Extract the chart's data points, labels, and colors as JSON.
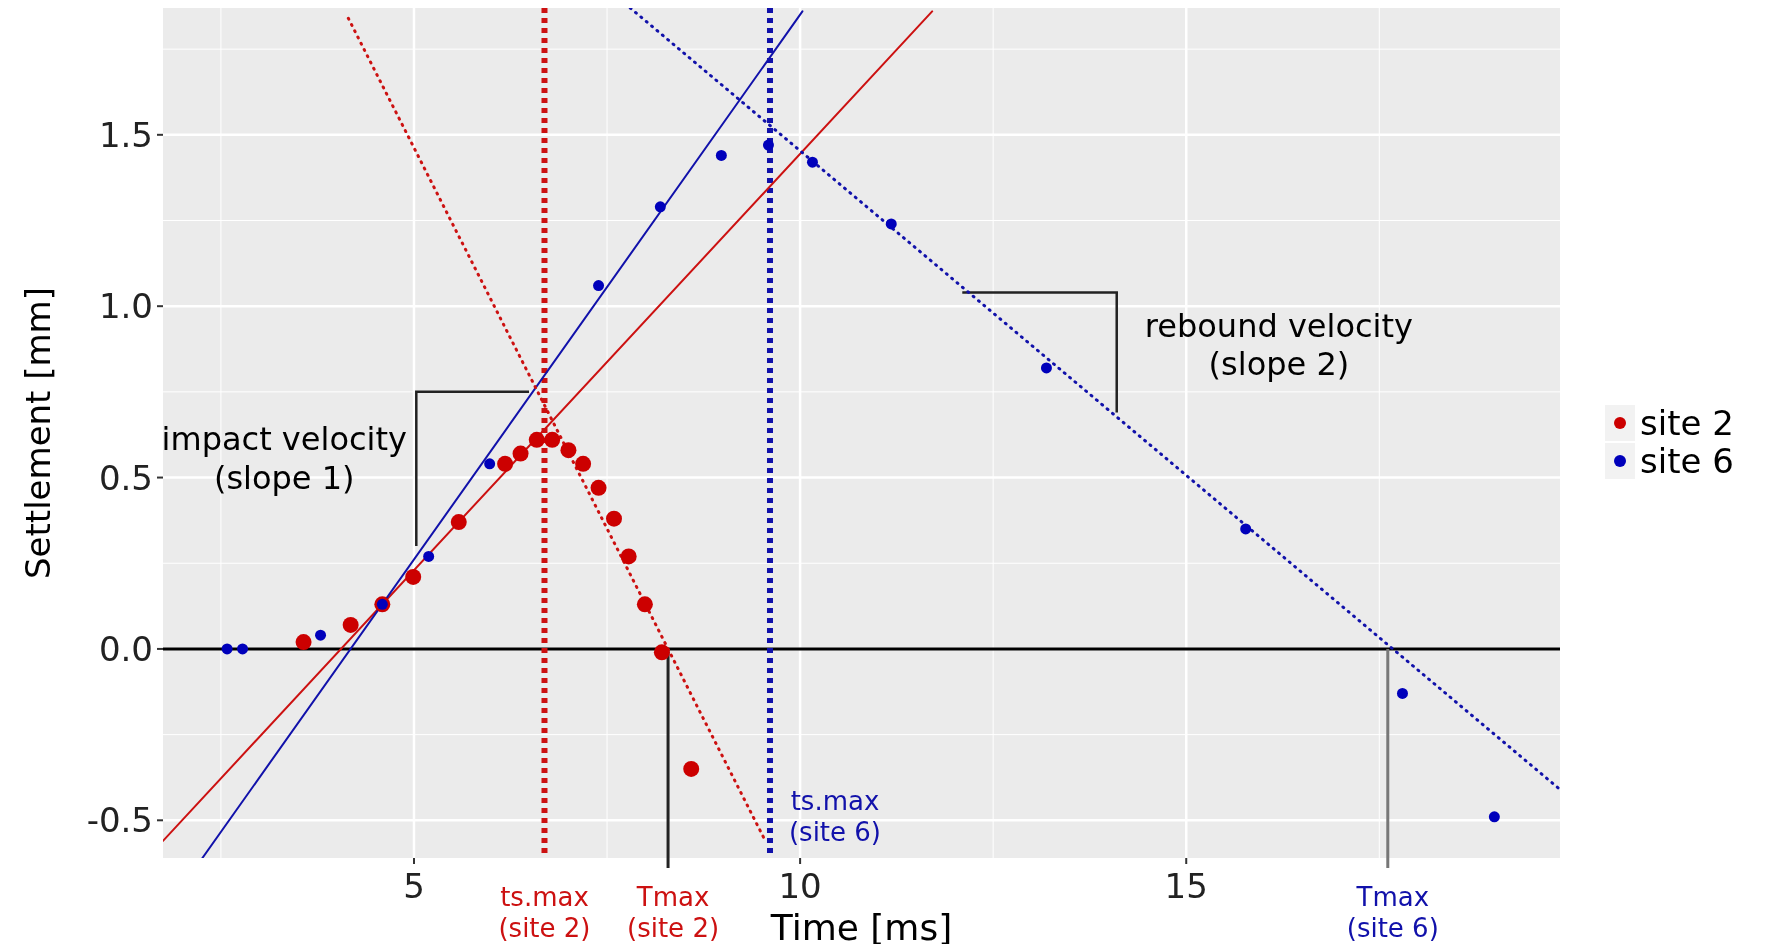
{
  "chart_data": {
    "type": "scatter",
    "xlabel": "Time [ms]",
    "ylabel": "Settlement [mm]",
    "xlim": [
      1.75,
      19.84
    ],
    "ylim": [
      -0.61,
      1.87
    ],
    "xticks": [
      5,
      10,
      15
    ],
    "yticks": [
      {
        "value": -0.5,
        "label": "-0.5"
      },
      {
        "value": 0,
        "label": "0.0"
      },
      {
        "value": 0.5,
        "label": "0.5"
      },
      {
        "value": 1,
        "label": "1.0"
      },
      {
        "value": 1.5,
        "label": "1.5"
      }
    ],
    "grid": true,
    "legend": "right",
    "marker": "circle",
    "series": [
      {
        "name": "site 2",
        "color": "#cc0000",
        "x": [
          3.57,
          4.18,
          4.59,
          4.99,
          5.58,
          6.18,
          6.38,
          6.59,
          6.79,
          7.0,
          7.19,
          7.39,
          7.59,
          7.78,
          7.99,
          8.21,
          8.59
        ],
        "values": [
          0.02,
          0.07,
          0.13,
          0.21,
          0.37,
          0.54,
          0.57,
          0.61,
          0.61,
          0.58,
          0.54,
          0.47,
          0.38,
          0.27,
          0.13,
          -0.01,
          -0.35
        ]
      },
      {
        "name": "site 6",
        "color": "#0000bb",
        "x": [
          2.58,
          2.78,
          3.79,
          4.59,
          5.19,
          5.98,
          7.39,
          8.19,
          8.98,
          9.59,
          10.16,
          11.18,
          13.19,
          15.77,
          17.8,
          18.99
        ],
        "values": [
          0,
          0,
          0.04,
          0.13,
          0.27,
          0.54,
          1.06,
          1.29,
          1.44,
          1.47,
          1.42,
          1.24,
          0.82,
          0.35,
          -0.13,
          -0.49
        ]
      },
      {
        "type": "line",
        "color": "#cc1111",
        "line_style": "solid",
        "marker": "none",
        "x": [
          1.75,
          11.71
        ],
        "values": [
          -0.56,
          1.86
        ]
      },
      {
        "type": "line",
        "color": "#1111aa",
        "line_style": "solid",
        "marker": "none",
        "x": [
          2.26,
          10.03
        ],
        "values": [
          -0.61,
          1.86
        ]
      },
      {
        "type": "line",
        "color": "#cc1111",
        "line_style": "dotted",
        "marker": "none",
        "x": [
          4.15,
          9.55
        ],
        "values": [
          1.84,
          -0.56
        ]
      },
      {
        "type": "line",
        "color": "#1111aa",
        "line_style": "dotted",
        "marker": "none",
        "x": [
          7.8,
          19.84
        ],
        "values": [
          1.87,
          -0.41
        ]
      }
    ],
    "ref_lines": [
      {
        "axis": "y",
        "value": 0,
        "color": "#000000",
        "line_style": "solid"
      },
      {
        "axis": "x",
        "value": 6.69,
        "label": "ts.max\n(site 2)",
        "color": "#cc1111",
        "line_style": "dotted"
      },
      {
        "axis": "x",
        "value": 9.61,
        "label": "ts.max\n(site 6)",
        "color": "#1111aa",
        "line_style": "dotted"
      },
      {
        "axis": "x",
        "value": 8.29,
        "label": "Tmax\n(site 2)",
        "color": "#222222",
        "line_style": "solid"
      },
      {
        "axis": "x",
        "value": 17.61,
        "label": "Tmax\n(site 6)",
        "color": "#777777",
        "line_style": "solid"
      }
    ],
    "annotations": [
      "impact velocity\n(slope 1)",
      "rebound velocity\n(slope 2)"
    ]
  }
}
